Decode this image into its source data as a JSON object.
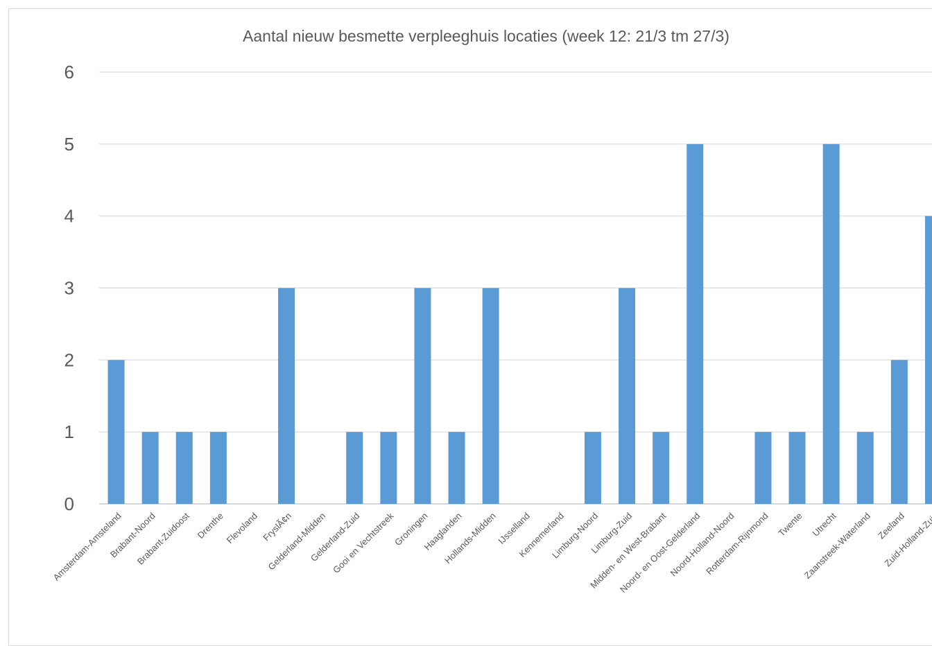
{
  "chart_data": {
    "type": "bar",
    "title": "Aantal nieuw besmette verpleeghuis locaties (week 12: 21/3 tm 27/3)",
    "xlabel": "",
    "ylabel": "",
    "ylim": [
      0,
      6
    ],
    "yticks": [
      "0",
      "1",
      "2",
      "3",
      "4",
      "5",
      "6"
    ],
    "grid": true,
    "legend": "none",
    "bar_color": "#5b9bd5",
    "categories": [
      "Amsterdam-Amsteland",
      "Brabant-Noord",
      "Brabant-Zuidoost",
      "Drenthe",
      "Flevoland",
      "FryslÃ¢n",
      "Gelderland-Midden",
      "Gelderland-Zuid",
      "Gooi en Vechtstreek",
      "Groningen",
      "Haaglanden",
      "Hollands-Midden",
      "IJsselland",
      "Kennemerland",
      "Limburg-Noord",
      "Limburg-Zuid",
      "Midden- en West-Brabant",
      "Noord- en Oost-Gelderland",
      "Noord-Holland-Noord",
      "Rotterdam-Rijnmond",
      "Twente",
      "Utrecht",
      "Zaanstreek-Waterland",
      "Zeeland",
      "Zuid-Holland-Zuid"
    ],
    "values": [
      2,
      1,
      1,
      1,
      0,
      3,
      0,
      1,
      1,
      3,
      1,
      3,
      0,
      0,
      1,
      3,
      1,
      5,
      0,
      1,
      1,
      5,
      1,
      2,
      4
    ]
  }
}
